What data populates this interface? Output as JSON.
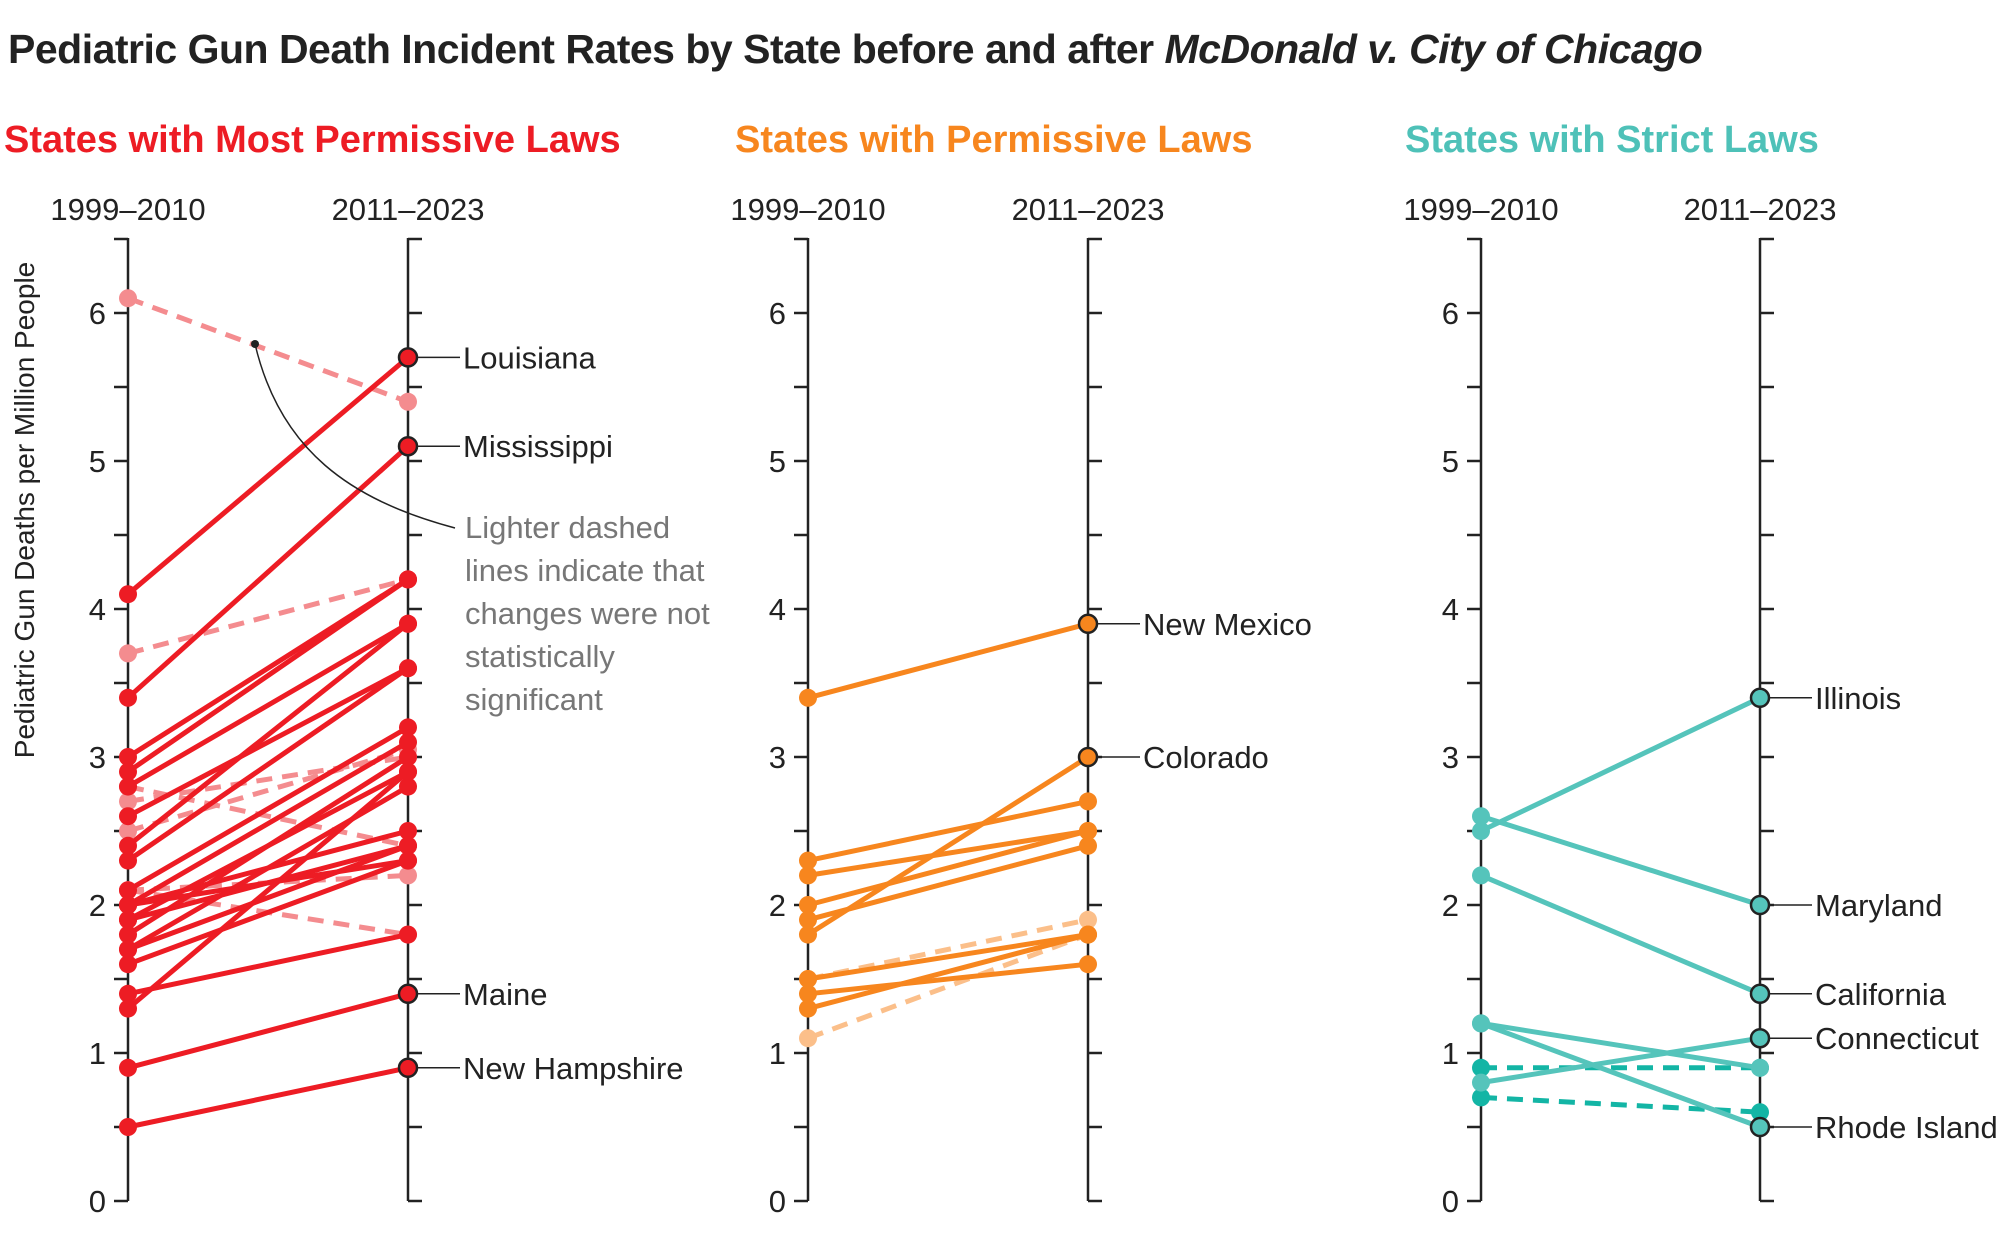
{
  "title": {
    "main": "Pediatric Gun Death Incident Rates by State before and after ",
    "case": "McDonald v. City of Chicago"
  },
  "annotation": [
    "Lighter dashed",
    "lines indicate that",
    "changes were not",
    "statistically",
    "significant"
  ],
  "chart_data": [
    {
      "type": "slope",
      "title": "States with Most Permissive Laws",
      "color": "#ed1c24",
      "light_color": "#f48c8f",
      "columns": [
        "1999–2010",
        "2011–2023"
      ],
      "ylabel": "Pediatric Gun Deaths per Million People",
      "ylim": [
        0,
        6.5
      ],
      "yticks": [
        0,
        1,
        2,
        3,
        4,
        5,
        6
      ],
      "lines": [
        {
          "label": "Louisiana",
          "before": 4.1,
          "after": 5.7,
          "significant": true
        },
        {
          "label": "Mississippi",
          "before": 3.4,
          "after": 5.1,
          "significant": true
        },
        {
          "label": "Maine",
          "before": 0.9,
          "after": 1.4,
          "significant": true
        },
        {
          "label": "New Hampshire",
          "before": 0.5,
          "after": 0.9,
          "significant": true
        },
        {
          "before": 6.1,
          "after": 5.4,
          "significant": false
        },
        {
          "before": 3.7,
          "after": 4.2,
          "significant": false
        },
        {
          "before": 2.8,
          "after": 2.4,
          "significant": false
        },
        {
          "before": 2.7,
          "after": 3.0,
          "significant": false
        },
        {
          "before": 2.5,
          "after": 3.05,
          "significant": false
        },
        {
          "before": 2.1,
          "after": 2.2,
          "significant": false
        },
        {
          "before": 2.1,
          "after": 1.8,
          "significant": false
        },
        {
          "before": 3.0,
          "after": 4.2,
          "significant": true
        },
        {
          "before": 2.9,
          "after": 4.2,
          "significant": true
        },
        {
          "before": 2.8,
          "after": 3.9,
          "significant": true
        },
        {
          "before": 2.6,
          "after": 3.6,
          "significant": true
        },
        {
          "before": 2.4,
          "after": 3.9,
          "significant": true
        },
        {
          "before": 2.3,
          "after": 3.6,
          "significant": true
        },
        {
          "before": 2.1,
          "after": 3.2,
          "significant": true
        },
        {
          "before": 2.0,
          "after": 3.1,
          "significant": true
        },
        {
          "before": 2.0,
          "after": 2.5,
          "significant": true
        },
        {
          "before": 1.9,
          "after": 2.9,
          "significant": true
        },
        {
          "before": 1.9,
          "after": 2.4,
          "significant": true
        },
        {
          "before": 1.8,
          "after": 3.0,
          "significant": true
        },
        {
          "before": 1.7,
          "after": 2.8,
          "significant": true
        },
        {
          "before": 1.7,
          "after": 2.4,
          "significant": true
        },
        {
          "before": 1.6,
          "after": 2.3,
          "significant": true
        },
        {
          "before": 2.0,
          "after": 2.3,
          "significant": true
        },
        {
          "before": 1.4,
          "after": 1.8,
          "significant": true
        },
        {
          "before": 1.3,
          "after": 2.9,
          "significant": true
        }
      ]
    },
    {
      "type": "slope",
      "title": "States with Permissive Laws",
      "color": "#f7861e",
      "light_color": "#fbbf8a",
      "columns": [
        "1999–2010",
        "2011–2023"
      ],
      "ylim": [
        0,
        6.5
      ],
      "yticks": [
        0,
        1,
        2,
        3,
        4,
        5,
        6
      ],
      "lines": [
        {
          "label": "New Mexico",
          "before": 3.4,
          "after": 3.9,
          "significant": true
        },
        {
          "label": "Colorado",
          "before": 1.8,
          "after": 3.0,
          "significant": true
        },
        {
          "before": 2.3,
          "after": 2.7,
          "significant": true
        },
        {
          "before": 2.2,
          "after": 2.5,
          "significant": true
        },
        {
          "before": 2.0,
          "after": 2.5,
          "significant": true
        },
        {
          "before": 1.9,
          "after": 2.4,
          "significant": true
        },
        {
          "before": 1.5,
          "after": 1.9,
          "significant": false
        },
        {
          "before": 1.1,
          "after": 1.8,
          "significant": false
        },
        {
          "before": 1.5,
          "after": 1.8,
          "significant": true
        },
        {
          "before": 1.4,
          "after": 1.6,
          "significant": true
        },
        {
          "before": 1.3,
          "after": 1.8,
          "significant": true
        }
      ]
    },
    {
      "type": "slope",
      "title": "States with Strict Laws",
      "color": "#55c4bb",
      "light_color": "#13b5a5",
      "columns": [
        "1999–2010",
        "2011–2023"
      ],
      "ylim": [
        0,
        6.5
      ],
      "yticks": [
        0,
        1,
        2,
        3,
        4,
        5,
        6
      ],
      "lines": [
        {
          "label": "Illinois",
          "before": 2.5,
          "after": 3.4,
          "significant": true
        },
        {
          "label": "Maryland",
          "before": 2.6,
          "after": 2.0,
          "significant": true
        },
        {
          "label": "California",
          "before": 2.2,
          "after": 1.4,
          "significant": true
        },
        {
          "label": "Connecticut",
          "before": 0.8,
          "after": 1.1,
          "significant": true
        },
        {
          "label": "Rhode Island",
          "before": 1.2,
          "after": 0.5,
          "significant": true
        },
        {
          "before": 1.2,
          "after": 0.9,
          "significant": true
        },
        {
          "before": 0.9,
          "after": 0.9,
          "significant": false
        },
        {
          "before": 0.7,
          "after": 0.6,
          "significant": false
        }
      ]
    }
  ]
}
